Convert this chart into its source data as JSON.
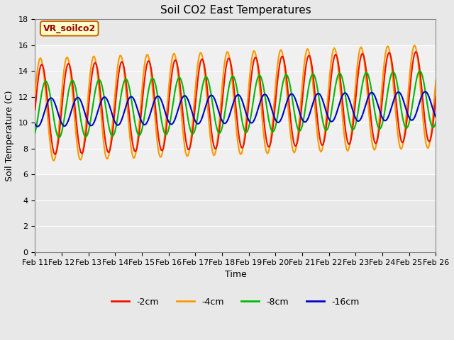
{
  "title": "Soil CO2 East Temperatures",
  "xlabel": "Time",
  "ylabel": "Soil Temperature (C)",
  "ylim": [
    0,
    18
  ],
  "yticks": [
    0,
    2,
    4,
    6,
    8,
    10,
    12,
    14,
    16,
    18
  ],
  "xtick_labels": [
    "Feb 11",
    "Feb 12",
    "Feb 13",
    "Feb 14",
    "Feb 15",
    "Feb 16",
    "Feb 17",
    "Feb 18",
    "Feb 19",
    "Feb 20",
    "Feb 21",
    "Feb 22",
    "Feb 23",
    "Feb 24",
    "Feb 25",
    "Feb 26"
  ],
  "annotation_text": "VR_soilco2",
  "annotation_box_color": "#ffffcc",
  "annotation_text_color": "#990000",
  "annotation_border_color": "#cc6600",
  "colors": {
    "red": "#ee1100",
    "orange": "#ff9900",
    "green": "#00bb00",
    "blue": "#0000cc"
  },
  "legend_labels": [
    "-2cm",
    "-4cm",
    "-8cm",
    "-16cm"
  ],
  "background_color": "#e8e8e8",
  "plot_bg_lower": "#d8d8d8",
  "plot_bg_upper": "#f0f0f0",
  "grid_color": "#ffffff",
  "title_fontsize": 11,
  "label_fontsize": 9,
  "tick_fontsize": 8
}
